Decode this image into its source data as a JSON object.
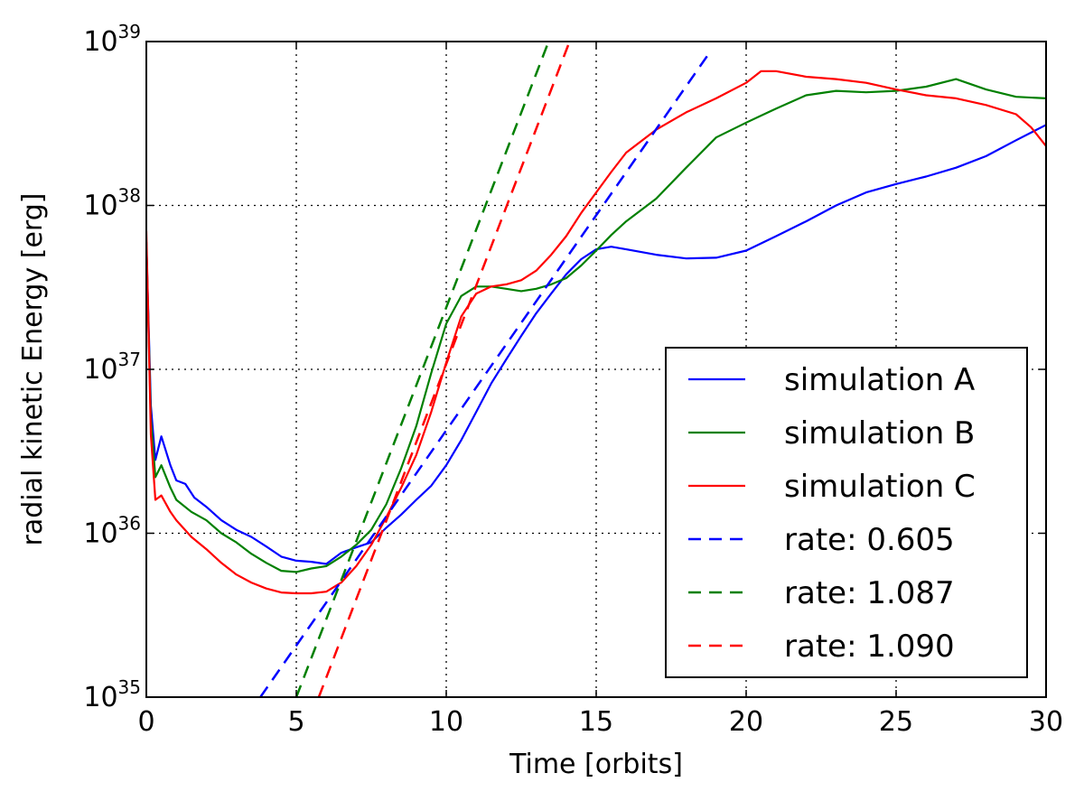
{
  "chart_data": {
    "type": "line",
    "title": "",
    "xlabel": "Time [orbits]",
    "ylabel": "radial kinetic Energy [erg]",
    "xlim": [
      0,
      30
    ],
    "ylim": [
      1e+35,
      1e+39
    ],
    "yscale": "log",
    "grid": true,
    "legend_position": "bottom-right",
    "x_ticks": [
      "0",
      "5",
      "10",
      "15",
      "20",
      "25",
      "30"
    ],
    "y_ticks": [
      {
        "value": 1e+35,
        "base": "10",
        "exp": "35"
      },
      {
        "value": 1e+36,
        "base": "10",
        "exp": "36"
      },
      {
        "value": 1e+37,
        "base": "10",
        "exp": "37"
      },
      {
        "value": 1e+38,
        "base": "10",
        "exp": "38"
      },
      {
        "value": 1e+39,
        "base": "10",
        "exp": "39"
      }
    ],
    "series": [
      {
        "name": "simulation A",
        "color": "#0000ff",
        "style": "solid",
        "points": [
          [
            0.0,
            6e+37
          ],
          [
            0.15,
            6e+36
          ],
          [
            0.3,
            2.8e+36
          ],
          [
            0.5,
            3.9e+36
          ],
          [
            0.8,
            2.6e+36
          ],
          [
            1.0,
            2.1e+36
          ],
          [
            1.3,
            2e+36
          ],
          [
            1.6,
            1.65e+36
          ],
          [
            2.0,
            1.45e+36
          ],
          [
            2.5,
            1.2e+36
          ],
          [
            3.0,
            1.05e+36
          ],
          [
            3.5,
            9.5e+35
          ],
          [
            4.0,
            8.3e+35
          ],
          [
            4.5,
            7.2e+35
          ],
          [
            5.0,
            6.8e+35
          ],
          [
            5.5,
            6.7e+35
          ],
          [
            6.0,
            6.5e+35
          ],
          [
            6.5,
            7.6e+35
          ],
          [
            7.0,
            8.2e+35
          ],
          [
            7.5,
            8.8e+35
          ],
          [
            8.0,
            1.08e+36
          ],
          [
            8.5,
            1.3e+36
          ],
          [
            9.0,
            1.6e+36
          ],
          [
            9.5,
            1.95e+36
          ],
          [
            10.0,
            2.6e+36
          ],
          [
            10.5,
            3.7e+36
          ],
          [
            11.0,
            5.5e+36
          ],
          [
            11.5,
            8.2e+36
          ],
          [
            12.0,
            1.15e+37
          ],
          [
            12.5,
            1.6e+37
          ],
          [
            13.0,
            2.2e+37
          ],
          [
            13.5,
            2.9e+37
          ],
          [
            14.0,
            3.8e+37
          ],
          [
            14.5,
            4.7e+37
          ],
          [
            15.0,
            5.4e+37
          ],
          [
            15.5,
            5.6e+37
          ],
          [
            16.0,
            5.4e+37
          ],
          [
            17.0,
            5e+37
          ],
          [
            18.0,
            4.75e+37
          ],
          [
            19.0,
            4.8e+37
          ],
          [
            20.0,
            5.3e+37
          ],
          [
            21.0,
            6.5e+37
          ],
          [
            22.0,
            8e+37
          ],
          [
            23.0,
            1e+38
          ],
          [
            24.0,
            1.2e+38
          ],
          [
            25.0,
            1.35e+38
          ],
          [
            26.0,
            1.5e+38
          ],
          [
            27.0,
            1.7e+38
          ],
          [
            28.0,
            2e+38
          ],
          [
            29.0,
            2.5e+38
          ],
          [
            30.0,
            3.1e+38
          ]
        ]
      },
      {
        "name": "simulation B",
        "color": "#008000",
        "style": "solid",
        "points": [
          [
            0.0,
            6e+37
          ],
          [
            0.15,
            5e+36
          ],
          [
            0.3,
            2.2e+36
          ],
          [
            0.5,
            2.6e+36
          ],
          [
            0.8,
            1.9e+36
          ],
          [
            1.0,
            1.6e+36
          ],
          [
            1.5,
            1.35e+36
          ],
          [
            2.0,
            1.2e+36
          ],
          [
            2.5,
            1e+36
          ],
          [
            3.0,
            8.8e+35
          ],
          [
            3.5,
            7.5e+35
          ],
          [
            4.0,
            6.6e+35
          ],
          [
            4.5,
            5.9e+35
          ],
          [
            5.0,
            5.8e+35
          ],
          [
            5.5,
            6.1e+35
          ],
          [
            6.0,
            6.3e+35
          ],
          [
            6.5,
            7.2e+35
          ],
          [
            7.0,
            8.5e+35
          ],
          [
            7.5,
            1.05e+36
          ],
          [
            8.0,
            1.5e+36
          ],
          [
            8.5,
            2.5e+36
          ],
          [
            9.0,
            4.5e+36
          ],
          [
            9.5,
            9.5e+36
          ],
          [
            10.0,
            1.9e+37
          ],
          [
            10.5,
            2.8e+37
          ],
          [
            11.0,
            3.2e+37
          ],
          [
            11.5,
            3.2e+37
          ],
          [
            12.0,
            3.1e+37
          ],
          [
            12.5,
            3e+37
          ],
          [
            13.0,
            3.1e+37
          ],
          [
            13.5,
            3.3e+37
          ],
          [
            14.0,
            3.6e+37
          ],
          [
            14.5,
            4.3e+37
          ],
          [
            15.0,
            5.3e+37
          ],
          [
            15.5,
            6.6e+37
          ],
          [
            16.0,
            8e+37
          ],
          [
            17.0,
            1.1e+38
          ],
          [
            18.0,
            1.7e+38
          ],
          [
            19.0,
            2.6e+38
          ],
          [
            20.0,
            3.2e+38
          ],
          [
            21.0,
            3.9e+38
          ],
          [
            22.0,
            4.7e+38
          ],
          [
            23.0,
            5e+38
          ],
          [
            24.0,
            4.9e+38
          ],
          [
            25.0,
            5e+38
          ],
          [
            26.0,
            5.3e+38
          ],
          [
            27.0,
            5.9e+38
          ],
          [
            28.0,
            5.1e+38
          ],
          [
            29.0,
            4.6e+38
          ],
          [
            30.0,
            4.5e+38
          ]
        ]
      },
      {
        "name": "simulation C",
        "color": "#ff0000",
        "style": "solid",
        "points": [
          [
            0.0,
            7e+37
          ],
          [
            0.15,
            4e+36
          ],
          [
            0.3,
            1.6e+36
          ],
          [
            0.5,
            1.7e+36
          ],
          [
            0.8,
            1.35e+36
          ],
          [
            1.0,
            1.2e+36
          ],
          [
            1.5,
            9.5e+35
          ],
          [
            2.0,
            8e+35
          ],
          [
            2.5,
            6.6e+35
          ],
          [
            3.0,
            5.6e+35
          ],
          [
            3.5,
            5e+35
          ],
          [
            4.0,
            4.6e+35
          ],
          [
            4.5,
            4.35e+35
          ],
          [
            5.0,
            4.3e+35
          ],
          [
            5.5,
            4.3e+35
          ],
          [
            6.0,
            4.4e+35
          ],
          [
            6.5,
            5e+35
          ],
          [
            7.0,
            6.3e+35
          ],
          [
            7.5,
            8.5e+35
          ],
          [
            8.0,
            1.25e+36
          ],
          [
            8.5,
            1.9e+36
          ],
          [
            9.0,
            3e+36
          ],
          [
            9.5,
            5.5e+36
          ],
          [
            10.0,
            1.1e+37
          ],
          [
            10.5,
            2.1e+37
          ],
          [
            11.0,
            2.9e+37
          ],
          [
            11.5,
            3.2e+37
          ],
          [
            12.0,
            3.3e+37
          ],
          [
            12.5,
            3.5e+37
          ],
          [
            13.0,
            4e+37
          ],
          [
            13.5,
            5e+37
          ],
          [
            14.0,
            6.5e+37
          ],
          [
            14.5,
            9e+37
          ],
          [
            15.0,
            1.2e+38
          ],
          [
            15.5,
            1.6e+38
          ],
          [
            16.0,
            2.1e+38
          ],
          [
            17.0,
            2.9e+38
          ],
          [
            18.0,
            3.7e+38
          ],
          [
            19.0,
            4.5e+38
          ],
          [
            20.0,
            5.6e+38
          ],
          [
            20.5,
            6.6e+38
          ],
          [
            21.0,
            6.6e+38
          ],
          [
            22.0,
            6.1e+38
          ],
          [
            23.0,
            5.9e+38
          ],
          [
            24.0,
            5.6e+38
          ],
          [
            25.0,
            5.1e+38
          ],
          [
            26.0,
            4.7e+38
          ],
          [
            27.0,
            4.5e+38
          ],
          [
            28.0,
            4.1e+38
          ],
          [
            29.0,
            3.6e+38
          ],
          [
            29.5,
            3e+38
          ],
          [
            30.0,
            2.3e+38
          ]
        ]
      },
      {
        "name": "rate: 0.605",
        "color": "#0000ff",
        "style": "dashed",
        "points": [
          [
            3.8,
            1e+35
          ],
          [
            18.75,
            8.4e+38
          ]
        ]
      },
      {
        "name": "rate: 1.087",
        "color": "#008000",
        "style": "dashed",
        "points": [
          [
            5.0,
            1e+35
          ],
          [
            13.5,
            1.1e+39
          ]
        ]
      },
      {
        "name": "rate: 1.090",
        "color": "#ff0000",
        "style": "dashed",
        "points": [
          [
            5.75,
            1e+35
          ],
          [
            14.2,
            1.1e+39
          ]
        ]
      }
    ]
  }
}
